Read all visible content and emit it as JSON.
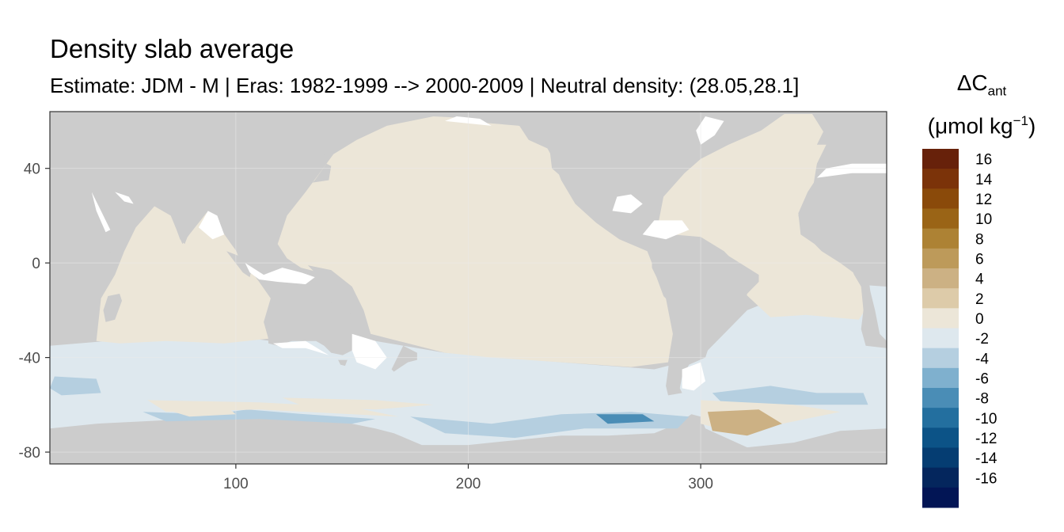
{
  "title": "Density slab average",
  "subtitle": "Estimate: JDM - M | Eras: 1982-1999 --> 2000-2009 | Neutral density: (28.05,28.1]",
  "legend": {
    "title_symbol": "ΔC",
    "title_subscript": "ant",
    "unit_prefix": "(μmol kg",
    "unit_superscript": "−1",
    "unit_suffix": ")",
    "bins": [
      {
        "color": "#67210a",
        "label": "16"
      },
      {
        "color": "#7b3309",
        "label": "14"
      },
      {
        "color": "#8a4a0a",
        "label": "12"
      },
      {
        "color": "#9a6416",
        "label": "10"
      },
      {
        "color": "#ad8234",
        "label": "8"
      },
      {
        "color": "#bd9a5a",
        "label": "6"
      },
      {
        "color": "#ccb184",
        "label": "4"
      },
      {
        "color": "#ddcba9",
        "label": "2"
      },
      {
        "color": "#ece6d8",
        "label": "0"
      },
      {
        "color": "#dee8ee",
        "label": "-2"
      },
      {
        "color": "#b5cfe0",
        "label": "-4"
      },
      {
        "color": "#7fb0ce",
        "label": "-6"
      },
      {
        "color": "#4a8db6",
        "label": "-8"
      },
      {
        "color": "#236f9f",
        "label": "-10"
      },
      {
        "color": "#0c5387",
        "label": "-12"
      },
      {
        "color": "#053d72",
        "label": "-14"
      },
      {
        "color": "#04265d",
        "label": "-16"
      },
      {
        "color": "#021555",
        "label": ""
      }
    ]
  },
  "map": {
    "x_range": [
      20,
      380
    ],
    "y_range": [
      -85,
      64
    ],
    "x_ticks": [
      "100",
      "200",
      "300"
    ],
    "y_ticks": [
      "40",
      "0",
      "-40",
      "-80"
    ],
    "colors": {
      "land": "#cccccc",
      "no_data": "#ffffff",
      "positive_0_2": "#ece6d8",
      "negative_0_2": "#dee8ee",
      "negative_2_4": "#b5cfe0",
      "positive_4_6": "#ccb184",
      "negative_6_8": "#4a8db6",
      "frame": "#333333",
      "grid": "#ebebeb",
      "tick_text": "#4d4d4d"
    }
  }
}
